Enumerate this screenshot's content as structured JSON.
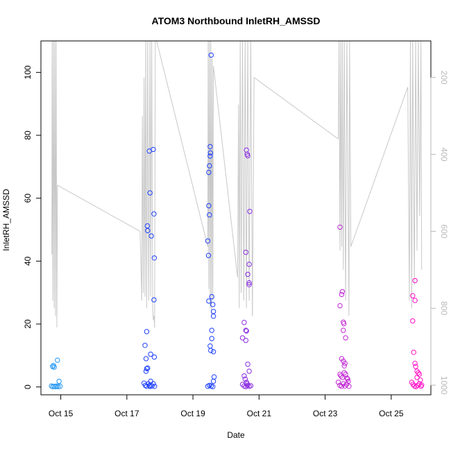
{
  "chart_data": {
    "type": "scatter",
    "title": "ATOM3 Northbound InletRH_AMSSD",
    "xlabel": "Date",
    "ylabel": "InletRH_AMSSD",
    "x_ticks": [
      "Oct 15",
      "Oct 17",
      "Oct 19",
      "Oct 21",
      "Oct 23",
      "Oct 25"
    ],
    "x_tick_days": [
      15,
      17,
      19,
      21,
      23,
      25
    ],
    "xlim": [
      14.4,
      26.2
    ],
    "ylim": [
      -2.5,
      110
    ],
    "y_ticks": [
      0,
      20,
      40,
      60,
      80,
      100
    ],
    "right_axis": {
      "reversed": true,
      "ticks": [
        200,
        400,
        600,
        800,
        1000
      ],
      "range": [
        1025,
        105
      ],
      "color": "#c8c8c8"
    },
    "grid": false,
    "legend": "none",
    "series": [
      {
        "color": "#2196f3",
        "points": [
          [
            14.75,
            6.5
          ],
          [
            14.78,
            6.8
          ],
          [
            14.8,
            6.3
          ],
          [
            14.9,
            8.5
          ],
          [
            14.95,
            1.8
          ],
          [
            14.72,
            0.3
          ],
          [
            14.76,
            0.1
          ],
          [
            14.8,
            0.2
          ],
          [
            14.84,
            0.1
          ],
          [
            14.88,
            0.3
          ],
          [
            14.92,
            0.1
          ],
          [
            14.98,
            0.2
          ]
        ]
      },
      {
        "color": "#1e40ff",
        "points": [
          [
            17.55,
            13.2
          ],
          [
            17.58,
            9.0
          ],
          [
            17.6,
            17.6
          ],
          [
            17.62,
            51.2
          ],
          [
            17.63,
            49.7
          ],
          [
            17.68,
            75.0
          ],
          [
            17.7,
            61.7
          ],
          [
            17.72,
            10.4
          ],
          [
            17.74,
            48.0
          ],
          [
            17.8,
            75.5
          ],
          [
            17.82,
            55.0
          ],
          [
            17.83,
            41.0
          ],
          [
            17.82,
            27.7
          ],
          [
            17.83,
            9.5
          ],
          [
            17.6,
            5.8
          ],
          [
            17.63,
            6.0
          ],
          [
            17.58,
            5.0
          ],
          [
            17.52,
            1.2
          ],
          [
            17.56,
            0.5
          ],
          [
            17.6,
            0.2
          ],
          [
            17.65,
            1.0
          ],
          [
            17.68,
            0.4
          ],
          [
            17.72,
            1.8
          ],
          [
            17.76,
            0.3
          ],
          [
            17.8,
            1.0
          ],
          [
            17.84,
            0.2
          ],
          [
            17.7,
            0.2
          ],
          [
            19.45,
            46.4
          ],
          [
            19.47,
            41.8
          ],
          [
            19.48,
            57.6
          ],
          [
            19.5,
            54.7
          ],
          [
            19.48,
            68.2
          ],
          [
            19.5,
            70.3
          ],
          [
            19.52,
            73.4
          ],
          [
            19.53,
            74.4
          ],
          [
            19.52,
            76.4
          ],
          [
            19.55,
            105.5
          ],
          [
            19.48,
            27.3
          ],
          [
            19.52,
            13.0
          ],
          [
            19.54,
            11.6
          ],
          [
            19.57,
            28.7
          ],
          [
            19.6,
            26.2
          ],
          [
            19.62,
            24.0
          ],
          [
            19.62,
            22.5
          ],
          [
            19.57,
            18.0
          ],
          [
            19.57,
            15.4
          ],
          [
            19.62,
            11.2
          ],
          [
            19.45,
            0.2
          ],
          [
            19.5,
            0.5
          ],
          [
            19.55,
            0.3
          ],
          [
            19.6,
            0.1
          ],
          [
            19.62,
            1.8
          ],
          [
            19.64,
            3.2
          ]
        ]
      },
      {
        "color": "#8a2be2",
        "points": [
          [
            20.5,
            15.6
          ],
          [
            20.55,
            20.5
          ],
          [
            20.6,
            14.8
          ],
          [
            20.6,
            18.0
          ],
          [
            20.62,
            17.8
          ],
          [
            20.62,
            75.3
          ],
          [
            20.64,
            74.0
          ],
          [
            20.66,
            73.5
          ],
          [
            20.6,
            42.8
          ],
          [
            20.66,
            35.8
          ],
          [
            20.7,
            39.0
          ],
          [
            20.7,
            33.1
          ],
          [
            20.7,
            32.5
          ],
          [
            20.72,
            55.8
          ],
          [
            20.66,
            7.2
          ],
          [
            20.7,
            5.0
          ],
          [
            20.55,
            3.5
          ],
          [
            20.58,
            2.5
          ],
          [
            20.62,
            1.5
          ],
          [
            20.5,
            0.8
          ],
          [
            20.55,
            0.3
          ],
          [
            20.6,
            0.1
          ],
          [
            20.65,
            0.5
          ],
          [
            20.7,
            0.2
          ],
          [
            20.75,
            0.4
          ],
          [
            20.64,
            1.0
          ]
        ]
      },
      {
        "color": "#c026d3",
        "points": [
          [
            23.45,
            50.8
          ],
          [
            23.45,
            25.8
          ],
          [
            23.5,
            29.4
          ],
          [
            23.52,
            30.3
          ],
          [
            23.55,
            20.6
          ],
          [
            23.57,
            20.1
          ],
          [
            23.55,
            18.0
          ],
          [
            23.62,
            15.6
          ],
          [
            23.5,
            9.0
          ],
          [
            23.55,
            8.2
          ],
          [
            23.58,
            6.7
          ],
          [
            23.6,
            7.5
          ],
          [
            23.45,
            4.0
          ],
          [
            23.48,
            3.5
          ],
          [
            23.52,
            3.0
          ],
          [
            23.58,
            4.5
          ],
          [
            23.62,
            4.0
          ],
          [
            23.66,
            2.8
          ],
          [
            23.4,
            1.5
          ],
          [
            23.45,
            0.5
          ],
          [
            23.5,
            0.2
          ],
          [
            23.55,
            1.0
          ],
          [
            23.6,
            0.3
          ],
          [
            23.65,
            0.8
          ],
          [
            23.7,
            1.8
          ],
          [
            23.72,
            0.2
          ],
          [
            23.68,
            2.5
          ]
        ]
      },
      {
        "color": "#ff0fc8",
        "points": [
          [
            25.65,
            29.0
          ],
          [
            25.72,
            27.5
          ],
          [
            25.72,
            33.8
          ],
          [
            25.65,
            21.0
          ],
          [
            25.68,
            11.0
          ],
          [
            25.72,
            7.5
          ],
          [
            25.74,
            6.5
          ],
          [
            25.78,
            5.0
          ],
          [
            25.82,
            4.5
          ],
          [
            25.85,
            4.0
          ],
          [
            25.78,
            3.0
          ],
          [
            25.88,
            2.2
          ],
          [
            25.62,
            1.5
          ],
          [
            25.66,
            0.8
          ],
          [
            25.7,
            0.3
          ],
          [
            25.75,
            0.1
          ],
          [
            25.8,
            0.5
          ],
          [
            25.85,
            1.0
          ],
          [
            25.9,
            0.2
          ],
          [
            25.92,
            0.6
          ]
        ]
      }
    ],
    "secondary_series": {
      "name": "",
      "color": "#c8c8c8",
      "segments": [
        [
          [
            14.73,
            660
          ],
          [
            14.74,
            105
          ],
          [
            14.76,
            780
          ],
          [
            14.78,
            105
          ],
          [
            14.8,
            800
          ],
          [
            14.82,
            105
          ],
          [
            14.84,
            820
          ],
          [
            14.86,
            105
          ],
          [
            14.88,
            850
          ],
          [
            14.9,
            480
          ]
        ],
        [
          [
            14.9,
            480
          ],
          [
            17.4,
            600
          ]
        ],
        [
          [
            17.4,
            600
          ],
          [
            17.45,
            780
          ],
          [
            17.47,
            300
          ],
          [
            17.5,
            760
          ],
          [
            17.52,
            200
          ],
          [
            17.55,
            770
          ],
          [
            17.57,
            105
          ],
          [
            17.6,
            800
          ],
          [
            17.63,
            105
          ],
          [
            17.66,
            780
          ],
          [
            17.7,
            105
          ],
          [
            17.72,
            770
          ],
          [
            17.75,
            105
          ],
          [
            17.78,
            800
          ],
          [
            17.8,
            830
          ],
          [
            17.82,
            820
          ],
          [
            17.84,
            850
          ]
        ],
        [
          [
            17.84,
            850
          ],
          [
            17.86,
            105
          ],
          [
            17.9,
            105
          ],
          [
            19.45,
            640
          ]
        ],
        [
          [
            19.45,
            640
          ],
          [
            19.46,
            105
          ],
          [
            19.48,
            750
          ],
          [
            19.5,
            105
          ],
          [
            19.52,
            800
          ],
          [
            19.54,
            105
          ],
          [
            19.56,
            820
          ],
          [
            19.58,
            150
          ],
          [
            19.6,
            780
          ],
          [
            19.62,
            170
          ]
        ],
        [
          [
            19.62,
            170
          ],
          [
            20.35,
            720
          ]
        ],
        [
          [
            20.35,
            720
          ],
          [
            20.38,
            270
          ],
          [
            20.4,
            800
          ],
          [
            20.43,
            105
          ],
          [
            20.46,
            760
          ],
          [
            20.5,
            105
          ],
          [
            20.54,
            780
          ],
          [
            20.58,
            105
          ],
          [
            20.62,
            800
          ],
          [
            20.66,
            105
          ],
          [
            20.7,
            780
          ],
          [
            20.75,
            105
          ],
          [
            20.8,
            820
          ]
        ],
        [
          [
            20.8,
            820
          ],
          [
            20.85,
            200
          ],
          [
            23.4,
            360
          ]
        ],
        [
          [
            23.4,
            360
          ],
          [
            23.42,
            105
          ],
          [
            23.45,
            650
          ],
          [
            23.47,
            105
          ],
          [
            23.5,
            640
          ],
          [
            23.52,
            105
          ],
          [
            23.55,
            700
          ],
          [
            23.58,
            105
          ],
          [
            23.62,
            780
          ],
          [
            23.66,
            105
          ],
          [
            23.72,
            820
          ],
          [
            23.74,
            105
          ],
          [
            23.78,
            640
          ]
        ],
        [
          [
            23.78,
            640
          ],
          [
            25.5,
            225
          ]
        ],
        [
          [
            25.5,
            225
          ],
          [
            25.55,
            780
          ],
          [
            25.58,
            105
          ],
          [
            25.62,
            800
          ],
          [
            25.65,
            105
          ],
          [
            25.7,
            740
          ],
          [
            25.74,
            105
          ],
          [
            25.78,
            650
          ],
          [
            25.82,
            105
          ],
          [
            25.86,
            560
          ],
          [
            25.9,
            105
          ],
          [
            25.92,
            700
          ]
        ]
      ]
    }
  }
}
